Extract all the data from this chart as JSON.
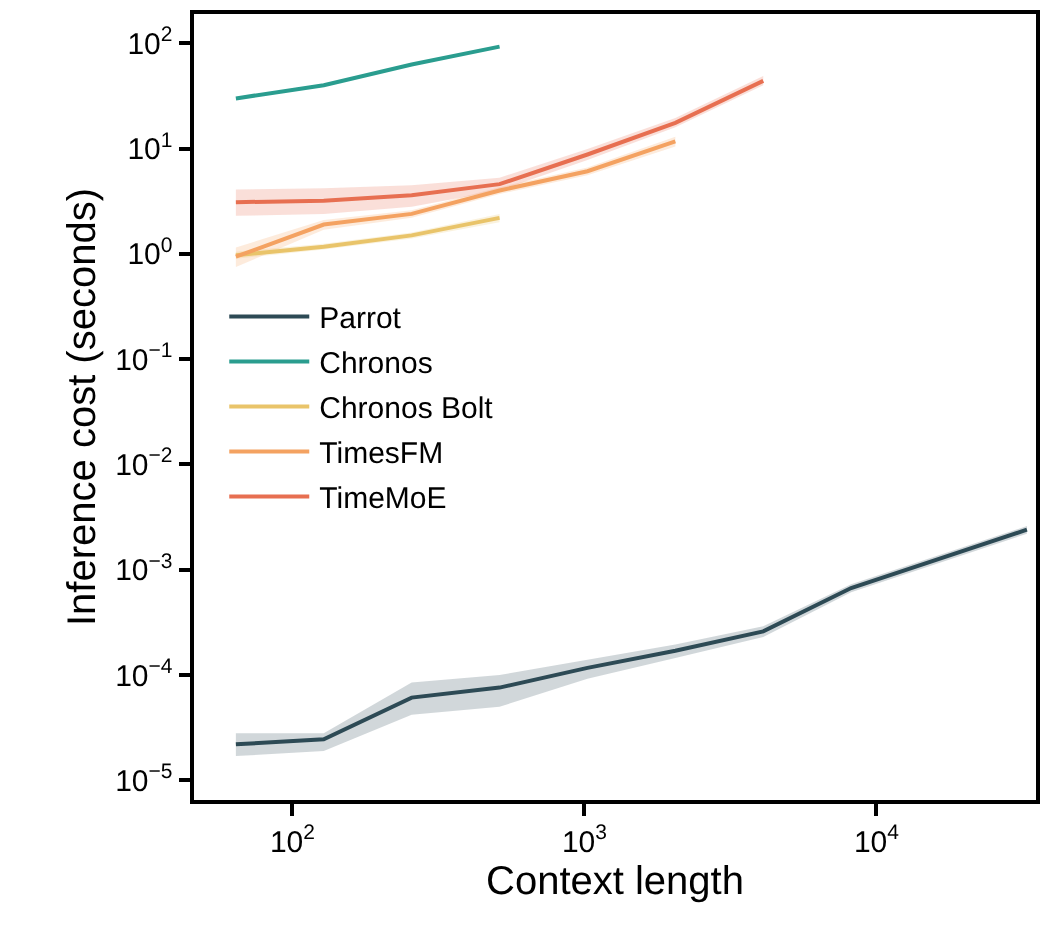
{
  "chart_data": {
    "type": "line",
    "xlabel": "Context length",
    "ylabel": "Inference cost (seconds)",
    "log": "xy",
    "legend": "center left",
    "marker": "none",
    "line_style": "solid",
    "xlim": [
      46,
      35200
    ],
    "ylim": [
      6.5e-06,
      190
    ],
    "xticks": [
      {
        "value": 100,
        "label": "10$^{2}$"
      },
      {
        "value": 1000,
        "label": "10$^{3}$"
      },
      {
        "value": 10000,
        "label": "10$^{4}$"
      }
    ],
    "yticks": [
      {
        "value": 1e-05,
        "label": "10$^{−5}$"
      },
      {
        "value": 0.0001,
        "label": "10$^{−4}$"
      },
      {
        "value": 0.001,
        "label": "10$^{−3}$"
      },
      {
        "value": 0.01,
        "label": "10$^{−2}$"
      },
      {
        "value": 0.1,
        "label": "10$^{−1}$"
      },
      {
        "value": 1,
        "label": "10$^{0}$"
      },
      {
        "value": 10,
        "label": "10$^{1}$"
      },
      {
        "value": 100,
        "label": "10$^{2}$"
      }
    ],
    "series": [
      {
        "name": "Parrot",
        "color": "#2d4a55",
        "x": [
          64,
          128,
          256,
          512,
          1024,
          2048,
          4096,
          8192,
          32768
        ],
        "values": [
          2.2e-05,
          2.45e-05,
          6.1e-05,
          7.6e-05,
          0.000117,
          0.00017,
          0.00026,
          0.00067,
          0.0024
        ],
        "lower": [
          1.7e-05,
          1.9e-05,
          4.2e-05,
          5e-05,
          9.2e-05,
          0.000145,
          0.00023,
          0.00061,
          0.0022
        ],
        "upper": [
          2.8e-05,
          2.8e-05,
          8.5e-05,
          0.0001,
          0.00014,
          0.000195,
          0.00029,
          0.00073,
          0.0026
        ]
      },
      {
        "name": "Chronos",
        "color": "#2a9d8f",
        "x": [
          64,
          128,
          256,
          512
        ],
        "values": [
          30,
          40,
          63,
          93
        ]
      },
      {
        "name": "Chronos Bolt",
        "color": "#e9c46a",
        "x": [
          64,
          128,
          256,
          512
        ],
        "values": [
          0.97,
          1.17,
          1.5,
          2.2
        ],
        "lower": [
          0.9,
          1.1,
          1.4,
          2.0
        ],
        "upper": [
          1.05,
          1.25,
          1.6,
          2.4
        ]
      },
      {
        "name": "TimesFM",
        "color": "#f4a261",
        "x": [
          64,
          128,
          256,
          512,
          1024,
          2048
        ],
        "values": [
          0.94,
          1.9,
          2.4,
          4.0,
          6.1,
          11.7
        ],
        "lower": [
          0.75,
          1.7,
          2.2,
          3.7,
          5.6,
          10.5
        ],
        "upper": [
          1.15,
          2.1,
          2.6,
          4.3,
          6.6,
          13
        ]
      },
      {
        "name": "TimeMoE",
        "color": "#e76f51",
        "x": [
          64,
          128,
          256,
          512,
          1024,
          2048,
          4096
        ],
        "values": [
          3.1,
          3.2,
          3.6,
          4.6,
          8.8,
          17.6,
          44
        ],
        "lower": [
          2.3,
          2.4,
          2.8,
          4.0,
          7.8,
          16,
          40
        ],
        "upper": [
          4.1,
          4.2,
          4.5,
          5.3,
          9.9,
          19.5,
          49
        ]
      }
    ]
  }
}
